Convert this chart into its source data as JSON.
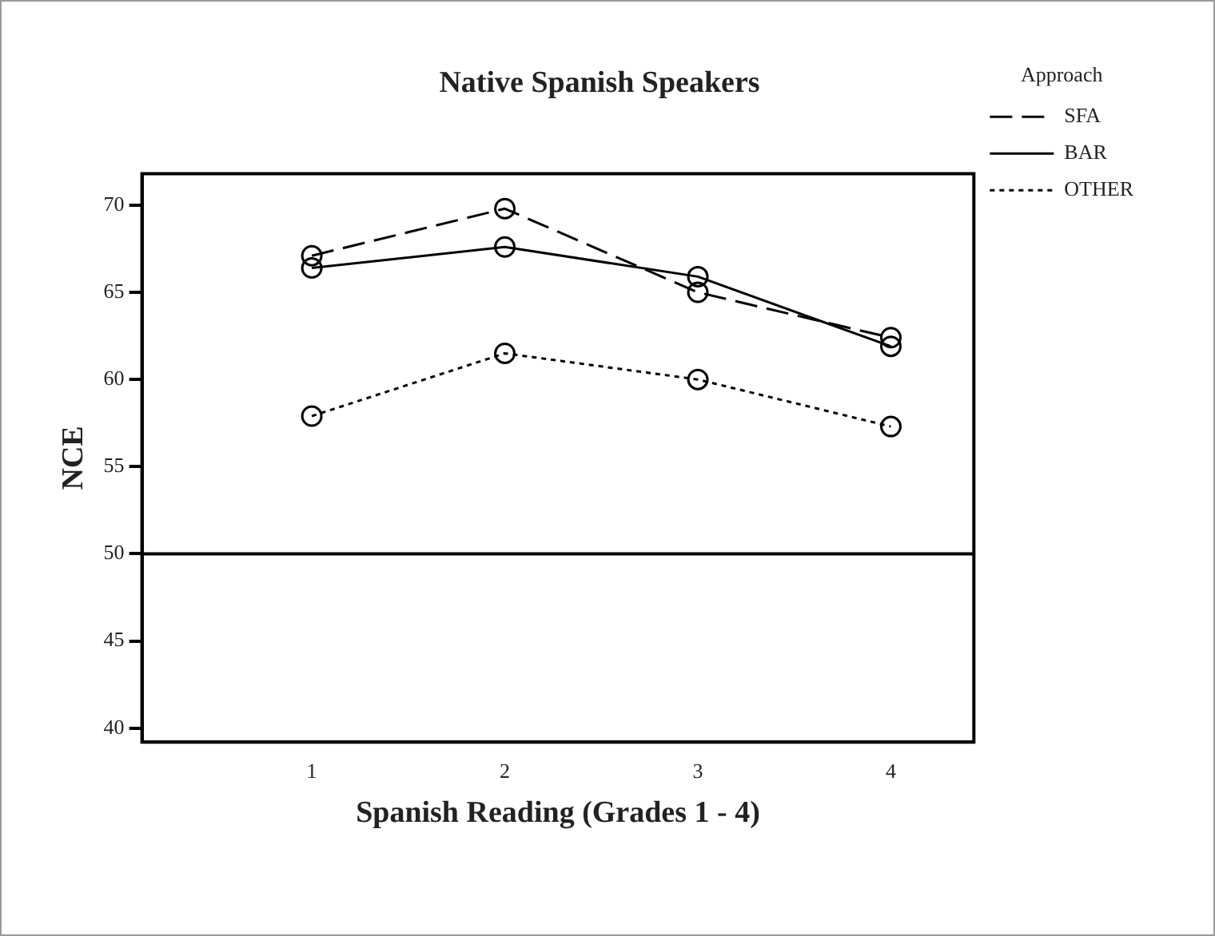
{
  "chart_data": {
    "type": "line",
    "title": "Native Spanish Speakers",
    "xlabel": "Spanish Reading (Grades 1 - 4)",
    "ylabel": "NCE",
    "legend_title": "Approach",
    "x": [
      1,
      2,
      3,
      4
    ],
    "series": [
      {
        "name": "SFA",
        "color": "#000000",
        "line_style": "dashed",
        "values": [
          67.1,
          69.8,
          65.0,
          62.4
        ]
      },
      {
        "name": "BAR",
        "color": "#000000",
        "line_style": "solid",
        "values": [
          66.4,
          67.6,
          65.9,
          61.9
        ]
      },
      {
        "name": "OTHER",
        "color": "#000000",
        "line_style": "dotted",
        "values": [
          57.9,
          61.5,
          60.0,
          57.3
        ]
      }
    ],
    "xlim": [
      0.12,
      4.43
    ],
    "xticks": [
      1,
      2,
      3,
      4
    ],
    "ylim": [
      39.2,
      71.8
    ],
    "yticks": [
      40,
      45,
      50,
      55,
      60,
      65,
      70
    ],
    "ref_lines": [
      {
        "axis": "y",
        "value": 50,
        "color": "#000000"
      }
    ],
    "marker": "circle",
    "grid": false,
    "legend": "right"
  }
}
